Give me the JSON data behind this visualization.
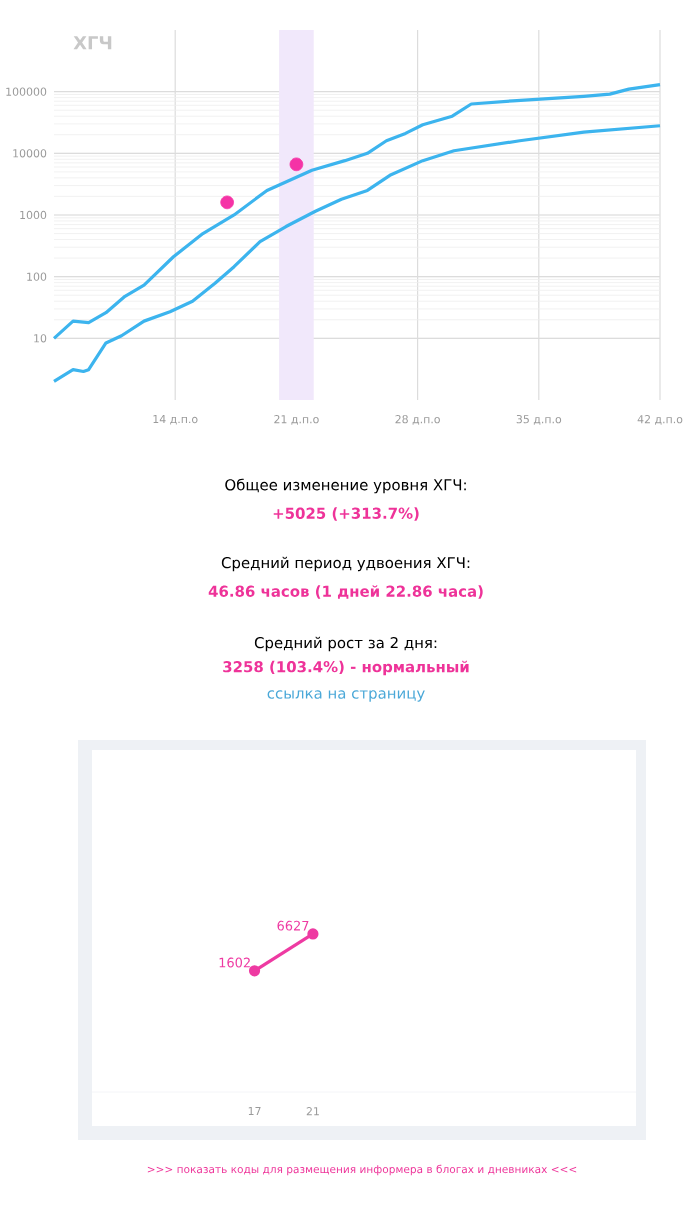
{
  "chart_data": [
    {
      "type": "line",
      "title": "ХГЧ",
      "log": "y",
      "grid": true,
      "xlim": [
        7,
        42
      ],
      "ylim": [
        1,
        1000000
      ],
      "xticks": [
        {
          "value": 14,
          "label": "14 д.п.о"
        },
        {
          "value": 21,
          "label": "21 д.п.о"
        },
        {
          "value": 28,
          "label": "28 д.п.о"
        },
        {
          "value": 35,
          "label": "35 д.п.о"
        },
        {
          "value": 42,
          "label": "42 д.п.о"
        }
      ],
      "yticks": [
        10,
        100,
        1000,
        10000,
        100000
      ],
      "bands": [
        {
          "axis": "x",
          "from": 20,
          "to": 22,
          "color": "#f1e8fb"
        }
      ],
      "series": [
        {
          "color": "#3cb4ee",
          "x": [
            7,
            8.1,
            9,
            10,
            11.1,
            12.2,
            13.9,
            15.6,
            17.4,
            19.3,
            21.9,
            23.8,
            25.1,
            26.2,
            27.3,
            28.3,
            30,
            31.1,
            33.5,
            37.6,
            39.1,
            40.2,
            42
          ],
          "values": [
            10,
            19,
            18,
            26,
            48,
            73,
            210,
            500,
            1000,
            2500,
            5300,
            7600,
            10000,
            16000,
            21000,
            29000,
            40000,
            63000,
            71000,
            84000,
            91000,
            110000,
            130000
          ]
        },
        {
          "color": "#3cb4ee",
          "x": [
            7,
            8.1,
            8.7,
            9,
            10,
            10.9,
            12.2,
            13.7,
            15,
            16.3,
            17.4,
            18.9,
            20.4,
            22.1,
            23.6,
            25.1,
            26.4,
            28.3,
            30.1,
            33.9,
            37.6,
            42
          ],
          "values": [
            2,
            3.1,
            2.9,
            3.1,
            8.4,
            11,
            19,
            27,
            40,
            78,
            145,
            370,
            650,
            1150,
            1800,
            2500,
            4400,
            7600,
            11000,
            16000,
            22000,
            28000
          ]
        },
        {
          "type": "scatter",
          "marker": "circle",
          "color": "#f533a6",
          "x": [
            17,
            21
          ],
          "values": [
            1602,
            6627
          ]
        }
      ],
      "annotations": [
        "Общее изменение уровня ХГЧ:",
        "+5025 (+313.7%)",
        "Средний период удвоения ХГЧ:",
        "46.86 часов (1 дней 22.86 часа)",
        "Средний рост за 2 дня:",
        "3258 (103.4%) - нормальный",
        "ссылка на страницу"
      ]
    },
    {
      "type": "line",
      "log": "y",
      "x": [
        17,
        21
      ],
      "values": [
        1602,
        6627
      ],
      "color": "#ee3aa2",
      "marker": "circle",
      "data_labels": true,
      "xlim": [
        6,
        43
      ],
      "xticks": [
        17,
        21
      ],
      "tick_labels": "x",
      "annotations": [
        ">>> показать коды для размещения информера в блогах и дневниках <<<"
      ]
    }
  ]
}
